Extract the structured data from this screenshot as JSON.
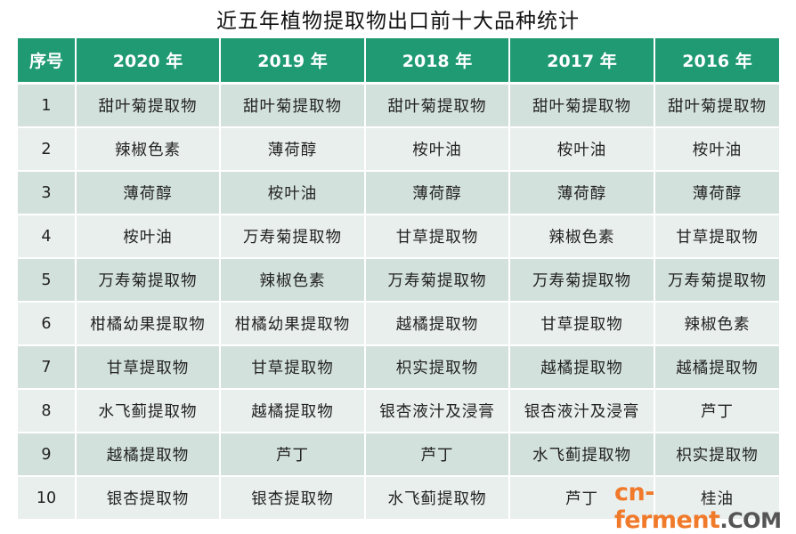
{
  "title": "近五年植物提取物出口前十大品种统计",
  "headers": [
    "序号",
    "2020 年",
    "2019 年",
    "2018 年",
    "2017 年",
    "2016 年"
  ],
  "rows": [
    [
      "1",
      "甜叶菊提取物",
      "甜叶菊提取物",
      "甜叶菊提取物",
      "甜叶菊提取物",
      "甜叶菊提取物"
    ],
    [
      "2",
      "辣椒色素",
      "薄荷醇",
      "桉叶油",
      "桉叶油",
      "桉叶油"
    ],
    [
      "3",
      "薄荷醇",
      "桉叶油",
      "薄荷醇",
      "薄荷醇",
      "薄荷醇"
    ],
    [
      "4",
      "桉叶油",
      "万寿菊提取物",
      "甘草提取物",
      "辣椒色素",
      "甘草提取物"
    ],
    [
      "5",
      "万寿菊提取物",
      "辣椒色素",
      "万寿菊提取物",
      "万寿菊提取物",
      "万寿菊提取物"
    ],
    [
      "6",
      "柑橘幼果提取物",
      "柑橘幼果提取物",
      "越橘提取物",
      "甘草提取物",
      "辣椒色素"
    ],
    [
      "7",
      "甘草提取物",
      "甘草提取物",
      "枳实提取物",
      "越橘提取物",
      "越橘提取物"
    ],
    [
      "8",
      "水飞蓟提取物",
      "越橘提取物",
      "银杏液汁及浸膏",
      "银杏液汁及浸膏",
      "芦丁"
    ],
    [
      "9",
      "越橘提取物",
      "芦丁",
      "芦丁",
      "水飞蓟提取物",
      "枳实提取物"
    ],
    [
      "10",
      "银杏提取物",
      "银杏提取物",
      "水飞蓟提取物",
      "芦丁",
      "桂油"
    ]
  ],
  "watermark": {
    "main": "cn-ferment",
    "suffix": ".COM"
  },
  "colors": {
    "header": "#1f9a73",
    "row_odd": "#d3e1dc",
    "row_even": "#e9efed",
    "watermark": "#f07a2a"
  }
}
